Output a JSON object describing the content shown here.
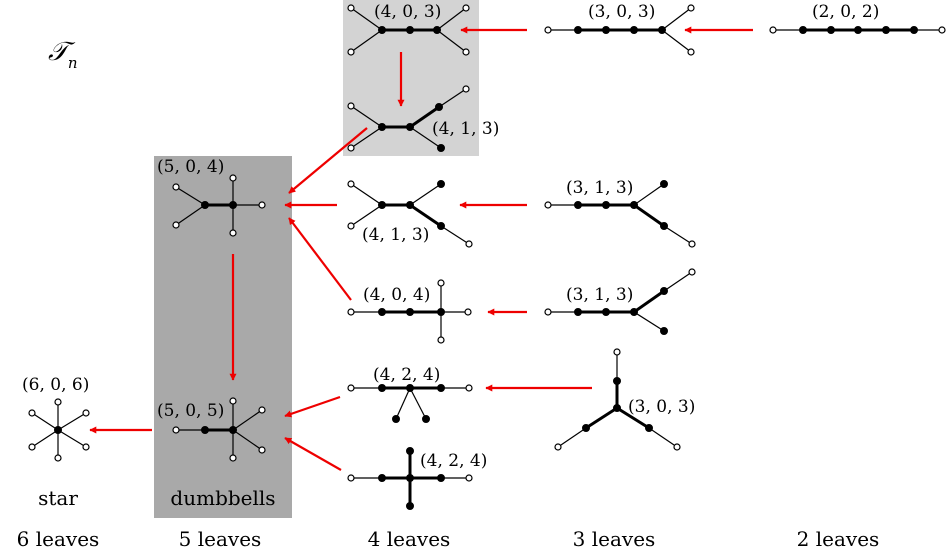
{
  "title": "𝒯",
  "title_sub": "n",
  "regions": {
    "light_box_color": "#d3d3d3",
    "dark_box_color": "#a9a9a9"
  },
  "arrow_color": "#ee0000",
  "trees": [
    {
      "id": "t403a",
      "label": "(4, 0, 3)"
    },
    {
      "id": "t303a",
      "label": "(3, 0, 3)"
    },
    {
      "id": "t202",
      "label": "(2, 0, 2)"
    },
    {
      "id": "t413a",
      "label": "(4, 1, 3)"
    },
    {
      "id": "t504",
      "label": "(5, 0, 4)"
    },
    {
      "id": "t413b",
      "label": "(4, 1, 3)"
    },
    {
      "id": "t313a",
      "label": "(3, 1, 3)"
    },
    {
      "id": "t404",
      "label": "(4, 0, 4)"
    },
    {
      "id": "t313b",
      "label": "(3, 1, 3)"
    },
    {
      "id": "t606",
      "label": "(6, 0, 6)"
    },
    {
      "id": "t505",
      "label": "(5, 0, 5)"
    },
    {
      "id": "t424a",
      "label": "(4, 2, 4)"
    },
    {
      "id": "t303b",
      "label": "(3, 0, 3)"
    },
    {
      "id": "t424b",
      "label": "(4, 2, 4)"
    }
  ],
  "captions": {
    "star": "star",
    "dumbbells": "dumbbells"
  },
  "columns": [
    "6 leaves",
    "5 leaves",
    "4 leaves",
    "3 leaves",
    "2 leaves"
  ]
}
